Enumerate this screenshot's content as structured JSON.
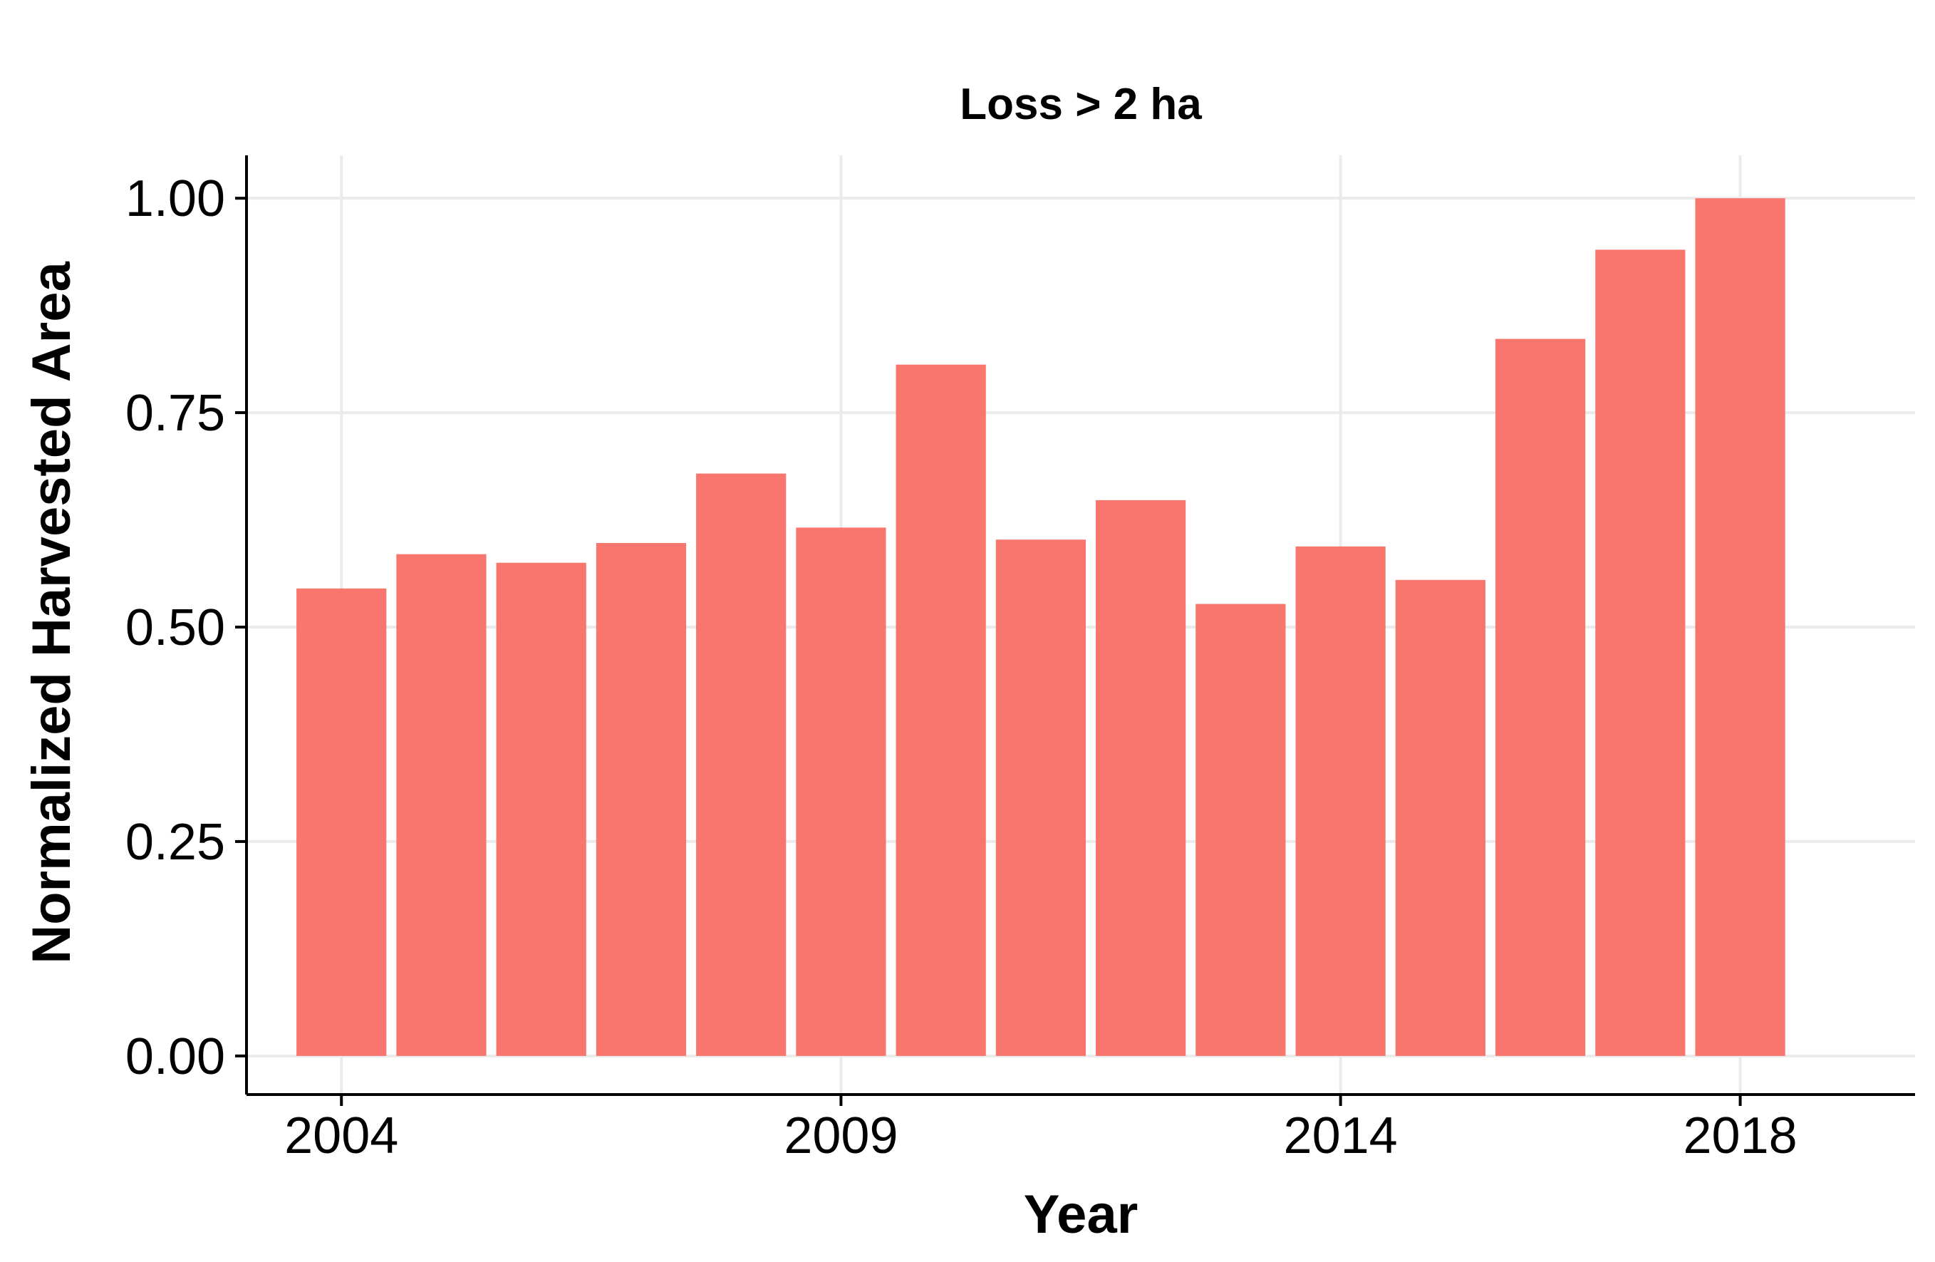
{
  "chart_data": {
    "type": "bar",
    "title": "Loss > 2 ha",
    "xlabel": "Year",
    "ylabel": "Normalized Harvested Area",
    "categories": [
      2004,
      2005,
      2006,
      2007,
      2008,
      2009,
      2010,
      2011,
      2012,
      2013,
      2014,
      2015,
      2016,
      2017,
      2018
    ],
    "values": [
      0.545,
      0.585,
      0.575,
      0.598,
      0.679,
      0.616,
      0.806,
      0.602,
      0.648,
      0.527,
      0.594,
      0.555,
      0.836,
      0.94,
      1.0
    ],
    "bar_color": "#f8766d",
    "x_ticks": [
      {
        "value": 2004,
        "label": "2004"
      },
      {
        "value": 2009,
        "label": "2009"
      },
      {
        "value": 2014,
        "label": "2014"
      },
      {
        "value": 2018,
        "label": "2018"
      }
    ],
    "y_ticks": [
      {
        "value": 0.0,
        "label": "0.00"
      },
      {
        "value": 0.25,
        "label": "0.25"
      },
      {
        "value": 0.5,
        "label": "0.50"
      },
      {
        "value": 0.75,
        "label": "0.75"
      },
      {
        "value": 1.0,
        "label": "1.00"
      }
    ],
    "xlim": [
      2003.05,
      2019.75
    ],
    "ylim": [
      -0.045,
      1.05
    ],
    "grid": true,
    "legend": "none"
  }
}
